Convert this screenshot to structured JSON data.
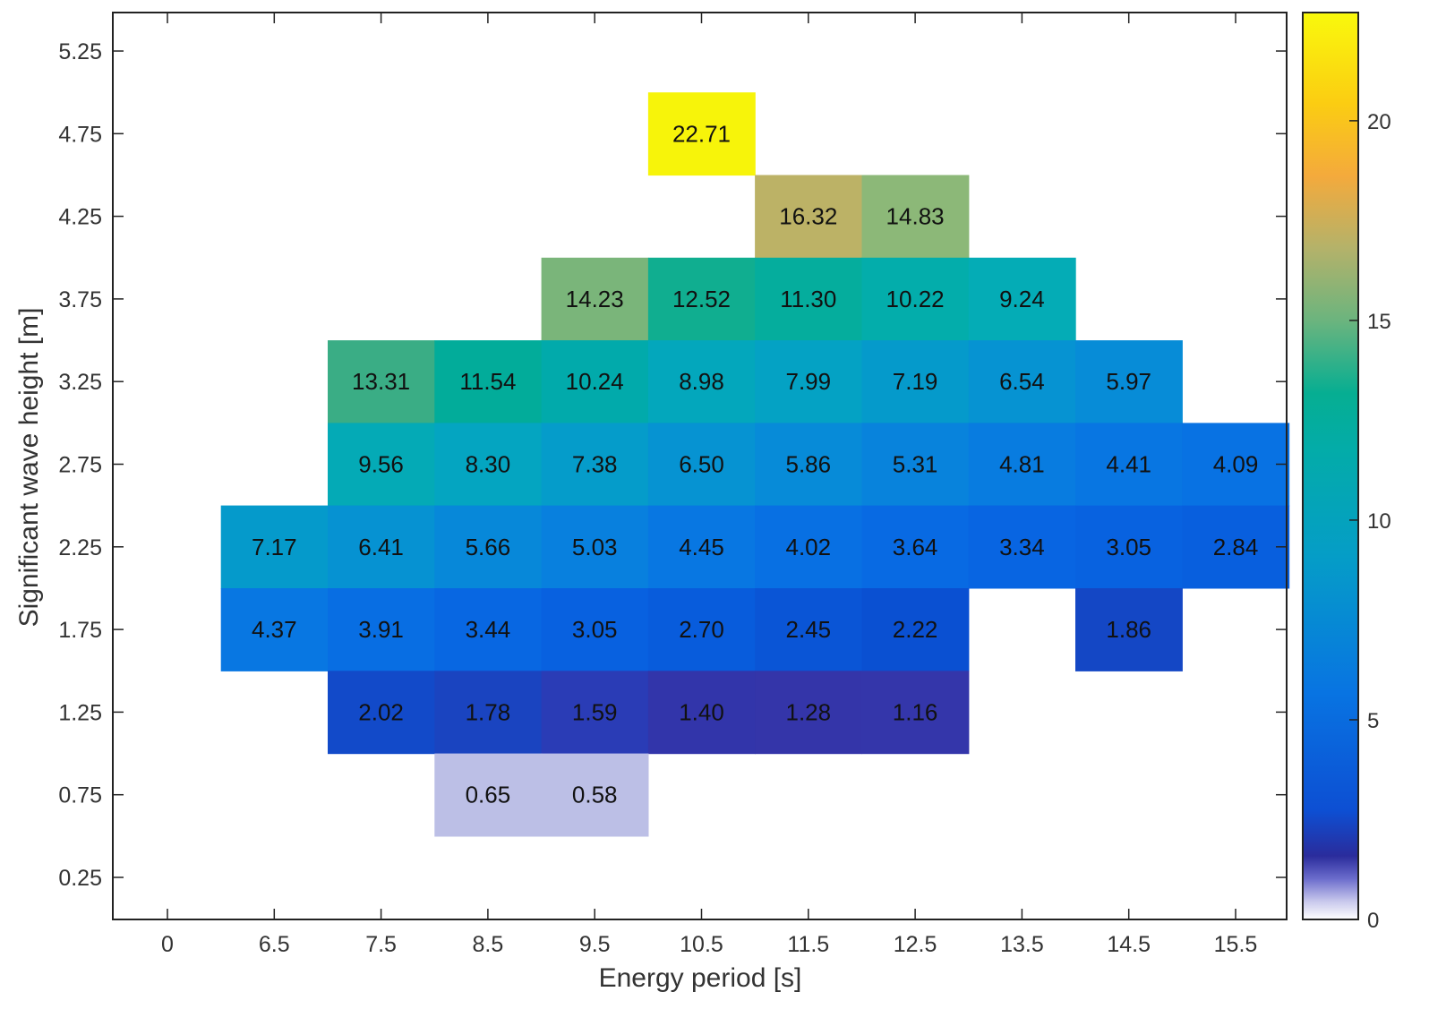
{
  "chart_data": {
    "type": "heatmap",
    "xlabel": "Energy period [s]",
    "ylabel": "Significant wave height [m]",
    "x_ticks": [
      "0",
      "6.5",
      "7.5",
      "8.5",
      "9.5",
      "10.5",
      "11.5",
      "12.5",
      "13.5",
      "14.5",
      "15.5"
    ],
    "y_ticks": [
      "0.25",
      "0.75",
      "1.25",
      "1.75",
      "2.25",
      "2.75",
      "3.25",
      "3.75",
      "4.25",
      "4.75",
      "5.25"
    ],
    "colorbar": {
      "ticks": [
        "0",
        "5",
        "10",
        "15",
        "20"
      ],
      "range": [
        0,
        22.71
      ]
    },
    "grid": false,
    "cells": [
      {
        "x": "10.5",
        "y": "4.75",
        "value": 22.71,
        "label": "22.71",
        "color": "#f7f40a"
      },
      {
        "x": "11.5",
        "y": "4.25",
        "value": 16.32,
        "label": "16.32",
        "color": "#bcb266"
      },
      {
        "x": "12.5",
        "y": "4.25",
        "value": 14.83,
        "label": "14.83",
        "color": "#8cb878"
      },
      {
        "x": "9.5",
        "y": "3.75",
        "value": 14.23,
        "label": "14.23",
        "color": "#7ab57a"
      },
      {
        "x": "10.5",
        "y": "3.75",
        "value": 12.52,
        "label": "12.52",
        "color": "#10ae90"
      },
      {
        "x": "11.5",
        "y": "3.75",
        "value": 11.3,
        "label": "11.30",
        "color": "#05ad9d"
      },
      {
        "x": "12.5",
        "y": "3.75",
        "value": 10.22,
        "label": "10.22",
        "color": "#03adab"
      },
      {
        "x": "13.5",
        "y": "3.75",
        "value": 9.24,
        "label": "9.24",
        "color": "#04acb6"
      },
      {
        "x": "7.5",
        "y": "3.25",
        "value": 13.31,
        "label": "13.31",
        "color": "#3aad85"
      },
      {
        "x": "8.5",
        "y": "3.25",
        "value": 11.54,
        "label": "11.54",
        "color": "#02ac9a"
      },
      {
        "x": "9.5",
        "y": "3.25",
        "value": 10.24,
        "label": "10.24",
        "color": "#01aaab"
      },
      {
        "x": "10.5",
        "y": "3.25",
        "value": 8.98,
        "label": "8.98",
        "color": "#03a7bc"
      },
      {
        "x": "11.5",
        "y": "3.25",
        "value": 7.99,
        "label": "7.99",
        "color": "#04a2c4"
      },
      {
        "x": "12.5",
        "y": "3.25",
        "value": 7.19,
        "label": "7.19",
        "color": "#059acb"
      },
      {
        "x": "13.5",
        "y": "3.25",
        "value": 6.54,
        "label": "6.54",
        "color": "#0693d2"
      },
      {
        "x": "14.5",
        "y": "3.25",
        "value": 5.97,
        "label": "5.97",
        "color": "#078cd7"
      },
      {
        "x": "7.5",
        "y": "2.75",
        "value": 9.56,
        "label": "9.56",
        "color": "#04aab6"
      },
      {
        "x": "8.5",
        "y": "2.75",
        "value": 8.3,
        "label": "8.30",
        "color": "#04a5c1"
      },
      {
        "x": "9.5",
        "y": "2.75",
        "value": 7.38,
        "label": "7.38",
        "color": "#059cca"
      },
      {
        "x": "10.5",
        "y": "2.75",
        "value": 6.5,
        "label": "6.50",
        "color": "#0693d2"
      },
      {
        "x": "11.5",
        "y": "2.75",
        "value": 5.86,
        "label": "5.86",
        "color": "#078bd8"
      },
      {
        "x": "12.5",
        "y": "2.75",
        "value": 5.31,
        "label": "5.31",
        "color": "#0883dc"
      },
      {
        "x": "13.5",
        "y": "2.75",
        "value": 4.81,
        "label": "4.81",
        "color": "#087ce0"
      },
      {
        "x": "14.5",
        "y": "2.75",
        "value": 4.41,
        "label": "4.41",
        "color": "#0876e2"
      },
      {
        "x": "15.5",
        "y": "2.75",
        "value": 4.09,
        "label": "4.09",
        "color": "#0872e3"
      },
      {
        "x": "6.5",
        "y": "2.25",
        "value": 7.17,
        "label": "7.17",
        "color": "#059acb"
      },
      {
        "x": "7.5",
        "y": "2.25",
        "value": 6.41,
        "label": "6.41",
        "color": "#0692d2"
      },
      {
        "x": "8.5",
        "y": "2.25",
        "value": 5.66,
        "label": "5.66",
        "color": "#0788d9"
      },
      {
        "x": "9.5",
        "y": "2.25",
        "value": 5.03,
        "label": "5.03",
        "color": "#0880de"
      },
      {
        "x": "10.5",
        "y": "2.25",
        "value": 4.45,
        "label": "4.45",
        "color": "#0877e2"
      },
      {
        "x": "11.5",
        "y": "2.25",
        "value": 4.02,
        "label": "4.02",
        "color": "#0870e3"
      },
      {
        "x": "12.5",
        "y": "2.25",
        "value": 3.64,
        "label": "3.64",
        "color": "#086ae3"
      },
      {
        "x": "13.5",
        "y": "2.25",
        "value": 3.34,
        "label": "3.34",
        "color": "#0865e2"
      },
      {
        "x": "14.5",
        "y": "2.25",
        "value": 3.05,
        "label": "3.05",
        "color": "#0862e0"
      },
      {
        "x": "15.5",
        "y": "2.25",
        "value": 2.84,
        "label": "2.84",
        "color": "#085fde"
      },
      {
        "x": "6.5",
        "y": "1.75",
        "value": 4.37,
        "label": "4.37",
        "color": "#0877e2"
      },
      {
        "x": "7.5",
        "y": "1.75",
        "value": 3.91,
        "label": "3.91",
        "color": "#086ee3"
      },
      {
        "x": "8.5",
        "y": "1.75",
        "value": 3.44,
        "label": "3.44",
        "color": "#0867e2"
      },
      {
        "x": "9.5",
        "y": "1.75",
        "value": 3.05,
        "label": "3.05",
        "color": "#0861e0"
      },
      {
        "x": "10.5",
        "y": "1.75",
        "value": 2.7,
        "label": "2.70",
        "color": "#085cdc"
      },
      {
        "x": "11.5",
        "y": "1.75",
        "value": 2.45,
        "label": "2.45",
        "color": "#0a55d6"
      },
      {
        "x": "12.5",
        "y": "1.75",
        "value": 2.22,
        "label": "2.22",
        "color": "#0a50d2"
      },
      {
        "x": "14.5",
        "y": "1.75",
        "value": 1.86,
        "label": "1.86",
        "color": "#1447c5"
      },
      {
        "x": "7.5",
        "y": "1.25",
        "value": 2.02,
        "label": "2.02",
        "color": "#124ac9"
      },
      {
        "x": "8.5",
        "y": "1.25",
        "value": 1.78,
        "label": "1.78",
        "color": "#1a44c0"
      },
      {
        "x": "9.5",
        "y": "1.25",
        "value": 1.59,
        "label": "1.59",
        "color": "#2a3cb6"
      },
      {
        "x": "10.5",
        "y": "1.25",
        "value": 1.4,
        "label": "1.40",
        "color": "#3235aa"
      },
      {
        "x": "11.5",
        "y": "1.25",
        "value": 1.28,
        "label": "1.28",
        "color": "#3435a9"
      },
      {
        "x": "12.5",
        "y": "1.25",
        "value": 1.16,
        "label": "1.16",
        "color": "#3436aa"
      },
      {
        "x": "8.5",
        "y": "0.75",
        "value": 0.65,
        "label": "0.65",
        "color": "#bcbfe6"
      },
      {
        "x": "9.5",
        "y": "0.75",
        "value": 0.58,
        "label": "0.58",
        "color": "#bcbfe6"
      }
    ]
  }
}
